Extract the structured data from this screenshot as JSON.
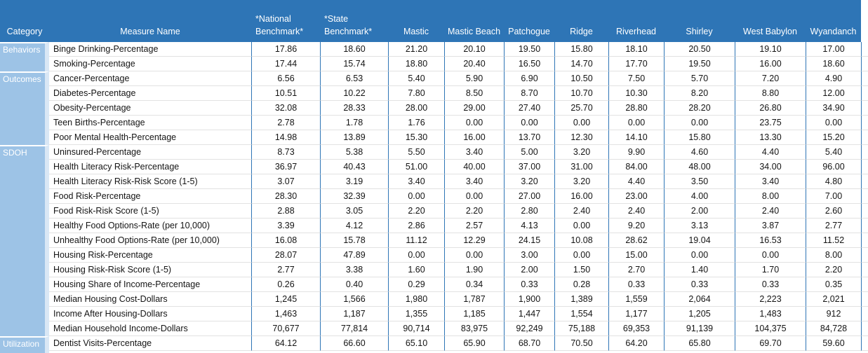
{
  "chart_data": {
    "type": "table",
    "columns": [
      "Category",
      "Measure Name",
      "*National\nBenchmark*",
      "*State\nBenchmark*",
      "Mastic",
      "Mastic Beach",
      "Patchogue",
      "Ridge",
      "Riverhead",
      "Shirley",
      "West Babylon",
      "Wyandanch"
    ],
    "categories": [
      {
        "label": "Behaviors",
        "row_span": 2
      },
      {
        "label": "Outcomes",
        "row_span": 5
      },
      {
        "label": "SDOH",
        "row_span": 13
      },
      {
        "label": "Utilization",
        "row_span": 1
      }
    ],
    "rows": [
      {
        "measure": "Binge Drinking-Percentage",
        "values": [
          "17.86",
          "18.60",
          "21.20",
          "20.10",
          "19.50",
          "15.80",
          "18.10",
          "20.50",
          "19.10",
          "17.00"
        ]
      },
      {
        "measure": "Smoking-Percentage",
        "values": [
          "17.44",
          "15.74",
          "18.80",
          "20.40",
          "16.50",
          "14.70",
          "17.70",
          "19.50",
          "16.00",
          "18.60"
        ]
      },
      {
        "measure": "Cancer-Percentage",
        "values": [
          "6.56",
          "6.53",
          "5.40",
          "5.90",
          "6.90",
          "10.50",
          "7.50",
          "5.70",
          "7.20",
          "4.90"
        ]
      },
      {
        "measure": "Diabetes-Percentage",
        "values": [
          "10.51",
          "10.22",
          "7.80",
          "8.50",
          "8.70",
          "10.70",
          "10.30",
          "8.20",
          "8.80",
          "12.00"
        ]
      },
      {
        "measure": "Obesity-Percentage",
        "values": [
          "32.08",
          "28.33",
          "28.00",
          "29.00",
          "27.40",
          "25.70",
          "28.80",
          "28.20",
          "26.80",
          "34.90"
        ]
      },
      {
        "measure": "Teen Births-Percentage",
        "values": [
          "2.78",
          "1.78",
          "1.76",
          "0.00",
          "0.00",
          "0.00",
          "0.00",
          "0.00",
          "23.75",
          "0.00"
        ]
      },
      {
        "measure": "Poor Mental Health-Percentage",
        "values": [
          "14.98",
          "13.89",
          "15.30",
          "16.00",
          "13.70",
          "12.30",
          "14.10",
          "15.80",
          "13.30",
          "15.20"
        ]
      },
      {
        "measure": "Uninsured-Percentage",
        "values": [
          "8.73",
          "5.38",
          "5.50",
          "3.40",
          "5.00",
          "3.20",
          "9.90",
          "4.60",
          "4.40",
          "5.40"
        ]
      },
      {
        "measure": "Health Literacy Risk-Percentage",
        "values": [
          "36.97",
          "40.43",
          "51.00",
          "40.00",
          "37.00",
          "31.00",
          "84.00",
          "48.00",
          "34.00",
          "96.00"
        ]
      },
      {
        "measure": "Health Literacy Risk-Risk Score (1-5)",
        "values": [
          "3.07",
          "3.19",
          "3.40",
          "3.40",
          "3.20",
          "3.20",
          "4.40",
          "3.50",
          "3.40",
          "4.80"
        ]
      },
      {
        "measure": "Food Risk-Percentage",
        "values": [
          "28.30",
          "32.39",
          "0.00",
          "0.00",
          "27.00",
          "16.00",
          "23.00",
          "4.00",
          "8.00",
          "7.00"
        ]
      },
      {
        "measure": "Food Risk-Risk Score (1-5)",
        "values": [
          "2.88",
          "3.05",
          "2.20",
          "2.20",
          "2.80",
          "2.40",
          "2.40",
          "2.00",
          "2.40",
          "2.60"
        ]
      },
      {
        "measure": "Healthy Food Options-Rate (per 10,000)",
        "values": [
          "3.39",
          "4.12",
          "2.86",
          "2.57",
          "4.13",
          "0.00",
          "9.20",
          "3.13",
          "3.87",
          "2.77"
        ]
      },
      {
        "measure": "Unhealthy Food Options-Rate (per 10,000)",
        "values": [
          "16.08",
          "15.78",
          "11.12",
          "12.29",
          "24.15",
          "10.08",
          "28.62",
          "19.04",
          "16.53",
          "11.52"
        ]
      },
      {
        "measure": "Housing Risk-Percentage",
        "values": [
          "28.07",
          "47.89",
          "0.00",
          "0.00",
          "3.00",
          "0.00",
          "15.00",
          "0.00",
          "0.00",
          "8.00"
        ]
      },
      {
        "measure": "Housing Risk-Risk Score (1-5)",
        "values": [
          "2.77",
          "3.38",
          "1.60",
          "1.90",
          "2.00",
          "1.50",
          "2.70",
          "1.40",
          "1.70",
          "2.20"
        ]
      },
      {
        "measure": "Housing Share of Income-Percentage",
        "values": [
          "0.26",
          "0.40",
          "0.29",
          "0.34",
          "0.33",
          "0.28",
          "0.33",
          "0.33",
          "0.33",
          "0.35"
        ]
      },
      {
        "measure": "Median Housing Cost-Dollars",
        "values": [
          "1,245",
          "1,566",
          "1,980",
          "1,787",
          "1,900",
          "1,389",
          "1,559",
          "2,064",
          "2,223",
          "2,021"
        ]
      },
      {
        "measure": "Income After Housing-Dollars",
        "values": [
          "1,463",
          "1,187",
          "1,355",
          "1,185",
          "1,447",
          "1,554",
          "1,177",
          "1,205",
          "1,483",
          "912"
        ]
      },
      {
        "measure": "Median Household Income-Dollars",
        "values": [
          "70,677",
          "77,814",
          "90,714",
          "83,975",
          "92,249",
          "75,188",
          "69,353",
          "91,139",
          "104,375",
          "84,728"
        ]
      },
      {
        "measure": "Dentist Visits-Percentage",
        "values": [
          "64.12",
          "66.60",
          "65.10",
          "65.90",
          "68.70",
          "70.50",
          "64.20",
          "65.80",
          "69.70",
          "59.60"
        ]
      }
    ]
  },
  "colors": {
    "header_bg": "#2E75B6",
    "category_bg": "#9DC3E6",
    "category_gutter": "#D9E7F5",
    "column_grid_line": "#2E75B6",
    "row_line": "#E2E2E2",
    "header_text": "#FFFFFF",
    "cell_text": "#141414"
  }
}
